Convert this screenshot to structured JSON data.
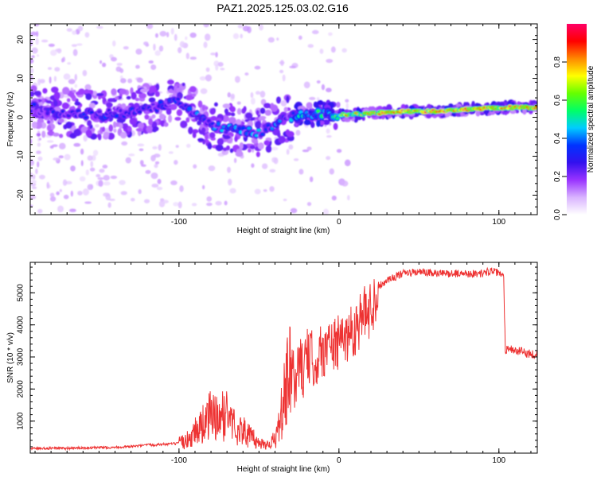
{
  "title": "PAZ1.2025.125.03.02.G16",
  "chart_data": [
    {
      "type": "heatmap",
      "xlabel": "Height of straight line (km)",
      "ylabel": "Frequency (Hz)",
      "xlim": [
        -193,
        124
      ],
      "ylim": [
        -25,
        24
      ],
      "x_ticks": [
        -100,
        0,
        100
      ],
      "y_ticks": [
        -20,
        -10,
        0,
        10,
        20
      ],
      "colorbar": {
        "label": "Normalized spectral amplitude",
        "range": [
          0,
          1
        ],
        "ticks": [
          0.0,
          0.2,
          0.4,
          0.6,
          0.8
        ],
        "tick_labels": [
          "0.0",
          "0.2",
          "0.4",
          "0.6",
          "0.8"
        ],
        "colormap": [
          "#ffffff",
          "#d9b3ff",
          "#9933ff",
          "#3311ee",
          "#0033ff",
          "#00ccff",
          "#00ff66",
          "#66ff00",
          "#ffff00",
          "#ff8800",
          "#ff0000",
          "#ff0066"
        ]
      },
      "ridge": [
        {
          "x": -190,
          "f": 1.5
        },
        {
          "x": -170,
          "f": 1.0
        },
        {
          "x": -150,
          "f": 0.5
        },
        {
          "x": -130,
          "f": 1.5
        },
        {
          "x": -110,
          "f": 3.0
        },
        {
          "x": -100,
          "f": 4.0
        },
        {
          "x": -90,
          "f": 1.0
        },
        {
          "x": -80,
          "f": -2.0
        },
        {
          "x": -70,
          "f": -3.0
        },
        {
          "x": -60,
          "f": -3.5
        },
        {
          "x": -50,
          "f": -4.0
        },
        {
          "x": -40,
          "f": -1.5
        },
        {
          "x": -30,
          "f": 0.0
        },
        {
          "x": -20,
          "f": 1.0
        },
        {
          "x": -10,
          "f": 1.0
        },
        {
          "x": 0,
          "f": 0.5
        },
        {
          "x": 20,
          "f": 1.0
        },
        {
          "x": 40,
          "f": 1.5
        },
        {
          "x": 60,
          "f": 1.5
        },
        {
          "x": 80,
          "f": 2.0
        },
        {
          "x": 100,
          "f": 2.5
        },
        {
          "x": 124,
          "f": 2.5
        }
      ]
    },
    {
      "type": "line",
      "xlabel": "Height of straight line (km)",
      "ylabel": "SNR (10 * v/v)",
      "xlim": [
        -193,
        124
      ],
      "ylim": [
        0,
        5950
      ],
      "x_ticks": [
        -100,
        0,
        100
      ],
      "y_ticks": [
        1000,
        2000,
        3000,
        4000,
        5000
      ],
      "color": "#ee3333",
      "series": [
        {
          "x": [
            -193,
            -170,
            -150,
            -130,
            -120,
            -100,
            -95,
            -90,
            -85,
            -80,
            -75,
            -70,
            -65,
            -60,
            -55,
            -50,
            -45,
            -40,
            -37,
            -35,
            -33,
            -30,
            -27,
            -25,
            -22,
            -20,
            -15,
            -10,
            -5,
            0,
            5,
            10,
            15,
            20,
            25,
            30,
            40,
            50,
            60,
            70,
            80,
            90,
            95,
            100,
            103,
            104,
            106,
            110,
            115,
            120,
            124
          ],
          "y": [
            150,
            150,
            170,
            200,
            250,
            300,
            400,
            700,
            900,
            1200,
            1000,
            1300,
            800,
            700,
            500,
            300,
            300,
            400,
            900,
            1500,
            2000,
            2500,
            2200,
            2800,
            2600,
            3000,
            2900,
            3200,
            3400,
            3400,
            3700,
            3900,
            4300,
            4500,
            5200,
            5400,
            5600,
            5650,
            5600,
            5600,
            5600,
            5600,
            5700,
            5600,
            5500,
            3200,
            3300,
            3200,
            3150,
            3100,
            3100
          ]
        }
      ]
    }
  ]
}
